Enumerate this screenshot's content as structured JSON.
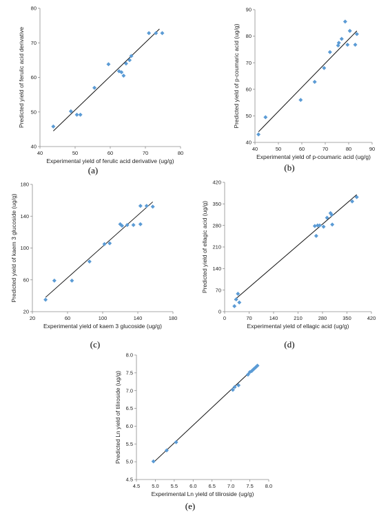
{
  "chart_data": [
    {
      "type": "scatter",
      "panel_label": "(a)",
      "xlabel": "Experimental yield of ferulic acid derivative (ug/g)",
      "ylabel": "Predicted yield of ferulic acid derivative",
      "xlim": [
        40,
        80
      ],
      "ylim": [
        40,
        80
      ],
      "xticks": [
        40,
        50,
        60,
        70,
        80
      ],
      "yticks": [
        40,
        50,
        60,
        70,
        80
      ],
      "points": [
        [
          43.8,
          45.8
        ],
        [
          48.8,
          50.2
        ],
        [
          50.5,
          49.2
        ],
        [
          51.5,
          49.2
        ],
        [
          55.5,
          57
        ],
        [
          59.5,
          63.8
        ],
        [
          62.5,
          61.8
        ],
        [
          63.2,
          61.5
        ],
        [
          63.8,
          60.5
        ],
        [
          64.5,
          64
        ],
        [
          65.5,
          65
        ],
        [
          66,
          66.2
        ],
        [
          71,
          72.8
        ],
        [
          73,
          72.8
        ],
        [
          74.8,
          72.8
        ]
      ],
      "fit_line": [
        [
          43.8,
          44.5
        ],
        [
          74,
          74
        ]
      ],
      "grid": false,
      "legend": "none"
    },
    {
      "type": "scatter",
      "panel_label": "(b)",
      "xlabel": "Experimental yield of p-coumaric acid (ug/g)",
      "ylabel": "Predicted yield of p-coumaric acid (ug/g)",
      "xlim": [
        40,
        90
      ],
      "ylim": [
        40,
        90
      ],
      "xticks": [
        40,
        50,
        60,
        70,
        80,
        90
      ],
      "yticks": [
        40,
        50,
        60,
        70,
        80,
        90
      ],
      "points": [
        [
          41.5,
          43
        ],
        [
          44.5,
          49.5
        ],
        [
          59.5,
          56
        ],
        [
          65.5,
          62.8
        ],
        [
          69.5,
          68
        ],
        [
          72,
          74
        ],
        [
          75.5,
          76.5
        ],
        [
          75.8,
          77.5
        ],
        [
          77,
          79
        ],
        [
          78.5,
          85.5
        ],
        [
          79.5,
          76.8
        ],
        [
          80.5,
          82
        ],
        [
          82.8,
          76.8
        ],
        [
          83.5,
          80.8
        ]
      ],
      "fit_line": [
        [
          41.5,
          44
        ],
        [
          83.5,
          82
        ]
      ],
      "grid": false,
      "legend": "none"
    },
    {
      "type": "scatter",
      "panel_label": "(c)",
      "xlabel": "Experimental yield of kaem 3 glucoside (ug/g)",
      "ylabel": "Predicted yield of kaem 3 glucoside (ug/g)",
      "xlim": [
        20,
        180
      ],
      "ylim": [
        20,
        180
      ],
      "xticks": [
        20,
        60,
        100,
        140,
        180
      ],
      "yticks": [
        20,
        60,
        100,
        140,
        180
      ],
      "points": [
        [
          35,
          35
        ],
        [
          45,
          59
        ],
        [
          65,
          59
        ],
        [
          85,
          83
        ],
        [
          102,
          105
        ],
        [
          108,
          106
        ],
        [
          120,
          130
        ],
        [
          122,
          128
        ],
        [
          128,
          129
        ],
        [
          135,
          129
        ],
        [
          143,
          130
        ],
        [
          143,
          153
        ],
        [
          150,
          153
        ],
        [
          157,
          152
        ]
      ],
      "fit_line": [
        [
          35,
          38
        ],
        [
          157,
          158
        ]
      ],
      "grid": false,
      "legend": "none"
    },
    {
      "type": "scatter",
      "panel_label": "(d)",
      "xlabel": "Experimental yield of ellagic acid (ug/g)",
      "ylabel": "Predicted  yield of ellagic acid (ug/g)",
      "xlim": [
        0,
        420
      ],
      "ylim": [
        0,
        420
      ],
      "xticks": [
        0,
        70,
        140,
        210,
        280,
        350,
        420
      ],
      "yticks": [
        0,
        70,
        140,
        210,
        280,
        350,
        420
      ],
      "points": [
        [
          28,
          18
        ],
        [
          33,
          40
        ],
        [
          38,
          58
        ],
        [
          42,
          30
        ],
        [
          258,
          278
        ],
        [
          262,
          246
        ],
        [
          266,
          280
        ],
        [
          272,
          280
        ],
        [
          283,
          276
        ],
        [
          293,
          305
        ],
        [
          303,
          320
        ],
        [
          306,
          315
        ],
        [
          308,
          283
        ],
        [
          365,
          358
        ],
        [
          378,
          372
        ]
      ],
      "fit_line": [
        [
          28,
          38
        ],
        [
          378,
          380
        ]
      ],
      "grid": false,
      "legend": "none"
    },
    {
      "type": "scatter",
      "panel_label": "(e)",
      "xlabel": "Experimental Ln yield of tiliroside (ug/g)",
      "ylabel": "Predicted Ln yield of tiliroside (ug/g)",
      "xlim": [
        4.5,
        8.0
      ],
      "ylim": [
        4.5,
        8.0
      ],
      "xticks": [
        "4.5",
        "5.0",
        "5.5",
        "6.0",
        "6.5",
        "7.0",
        "7.5",
        "8.0"
      ],
      "yticks": [
        "4.5",
        "5.0",
        "5.5",
        "6.0",
        "6.5",
        "7.0",
        "7.5",
        "8.0"
      ],
      "points": [
        [
          4.95,
          5.01
        ],
        [
          5.3,
          5.32
        ],
        [
          5.55,
          5.55
        ],
        [
          7.05,
          7.02
        ],
        [
          7.1,
          7.1
        ],
        [
          7.2,
          7.15
        ],
        [
          7.45,
          7.45
        ],
        [
          7.5,
          7.52
        ],
        [
          7.55,
          7.55
        ],
        [
          7.6,
          7.6
        ],
        [
          7.65,
          7.65
        ],
        [
          7.7,
          7.7
        ]
      ],
      "fit_line": [
        [
          4.95,
          4.98
        ],
        [
          7.7,
          7.72
        ]
      ],
      "grid": false,
      "legend": "none"
    }
  ],
  "colors": {
    "marker": "#5b9bd5",
    "fit_line": "#111111",
    "axis": "#8c8c8c"
  }
}
